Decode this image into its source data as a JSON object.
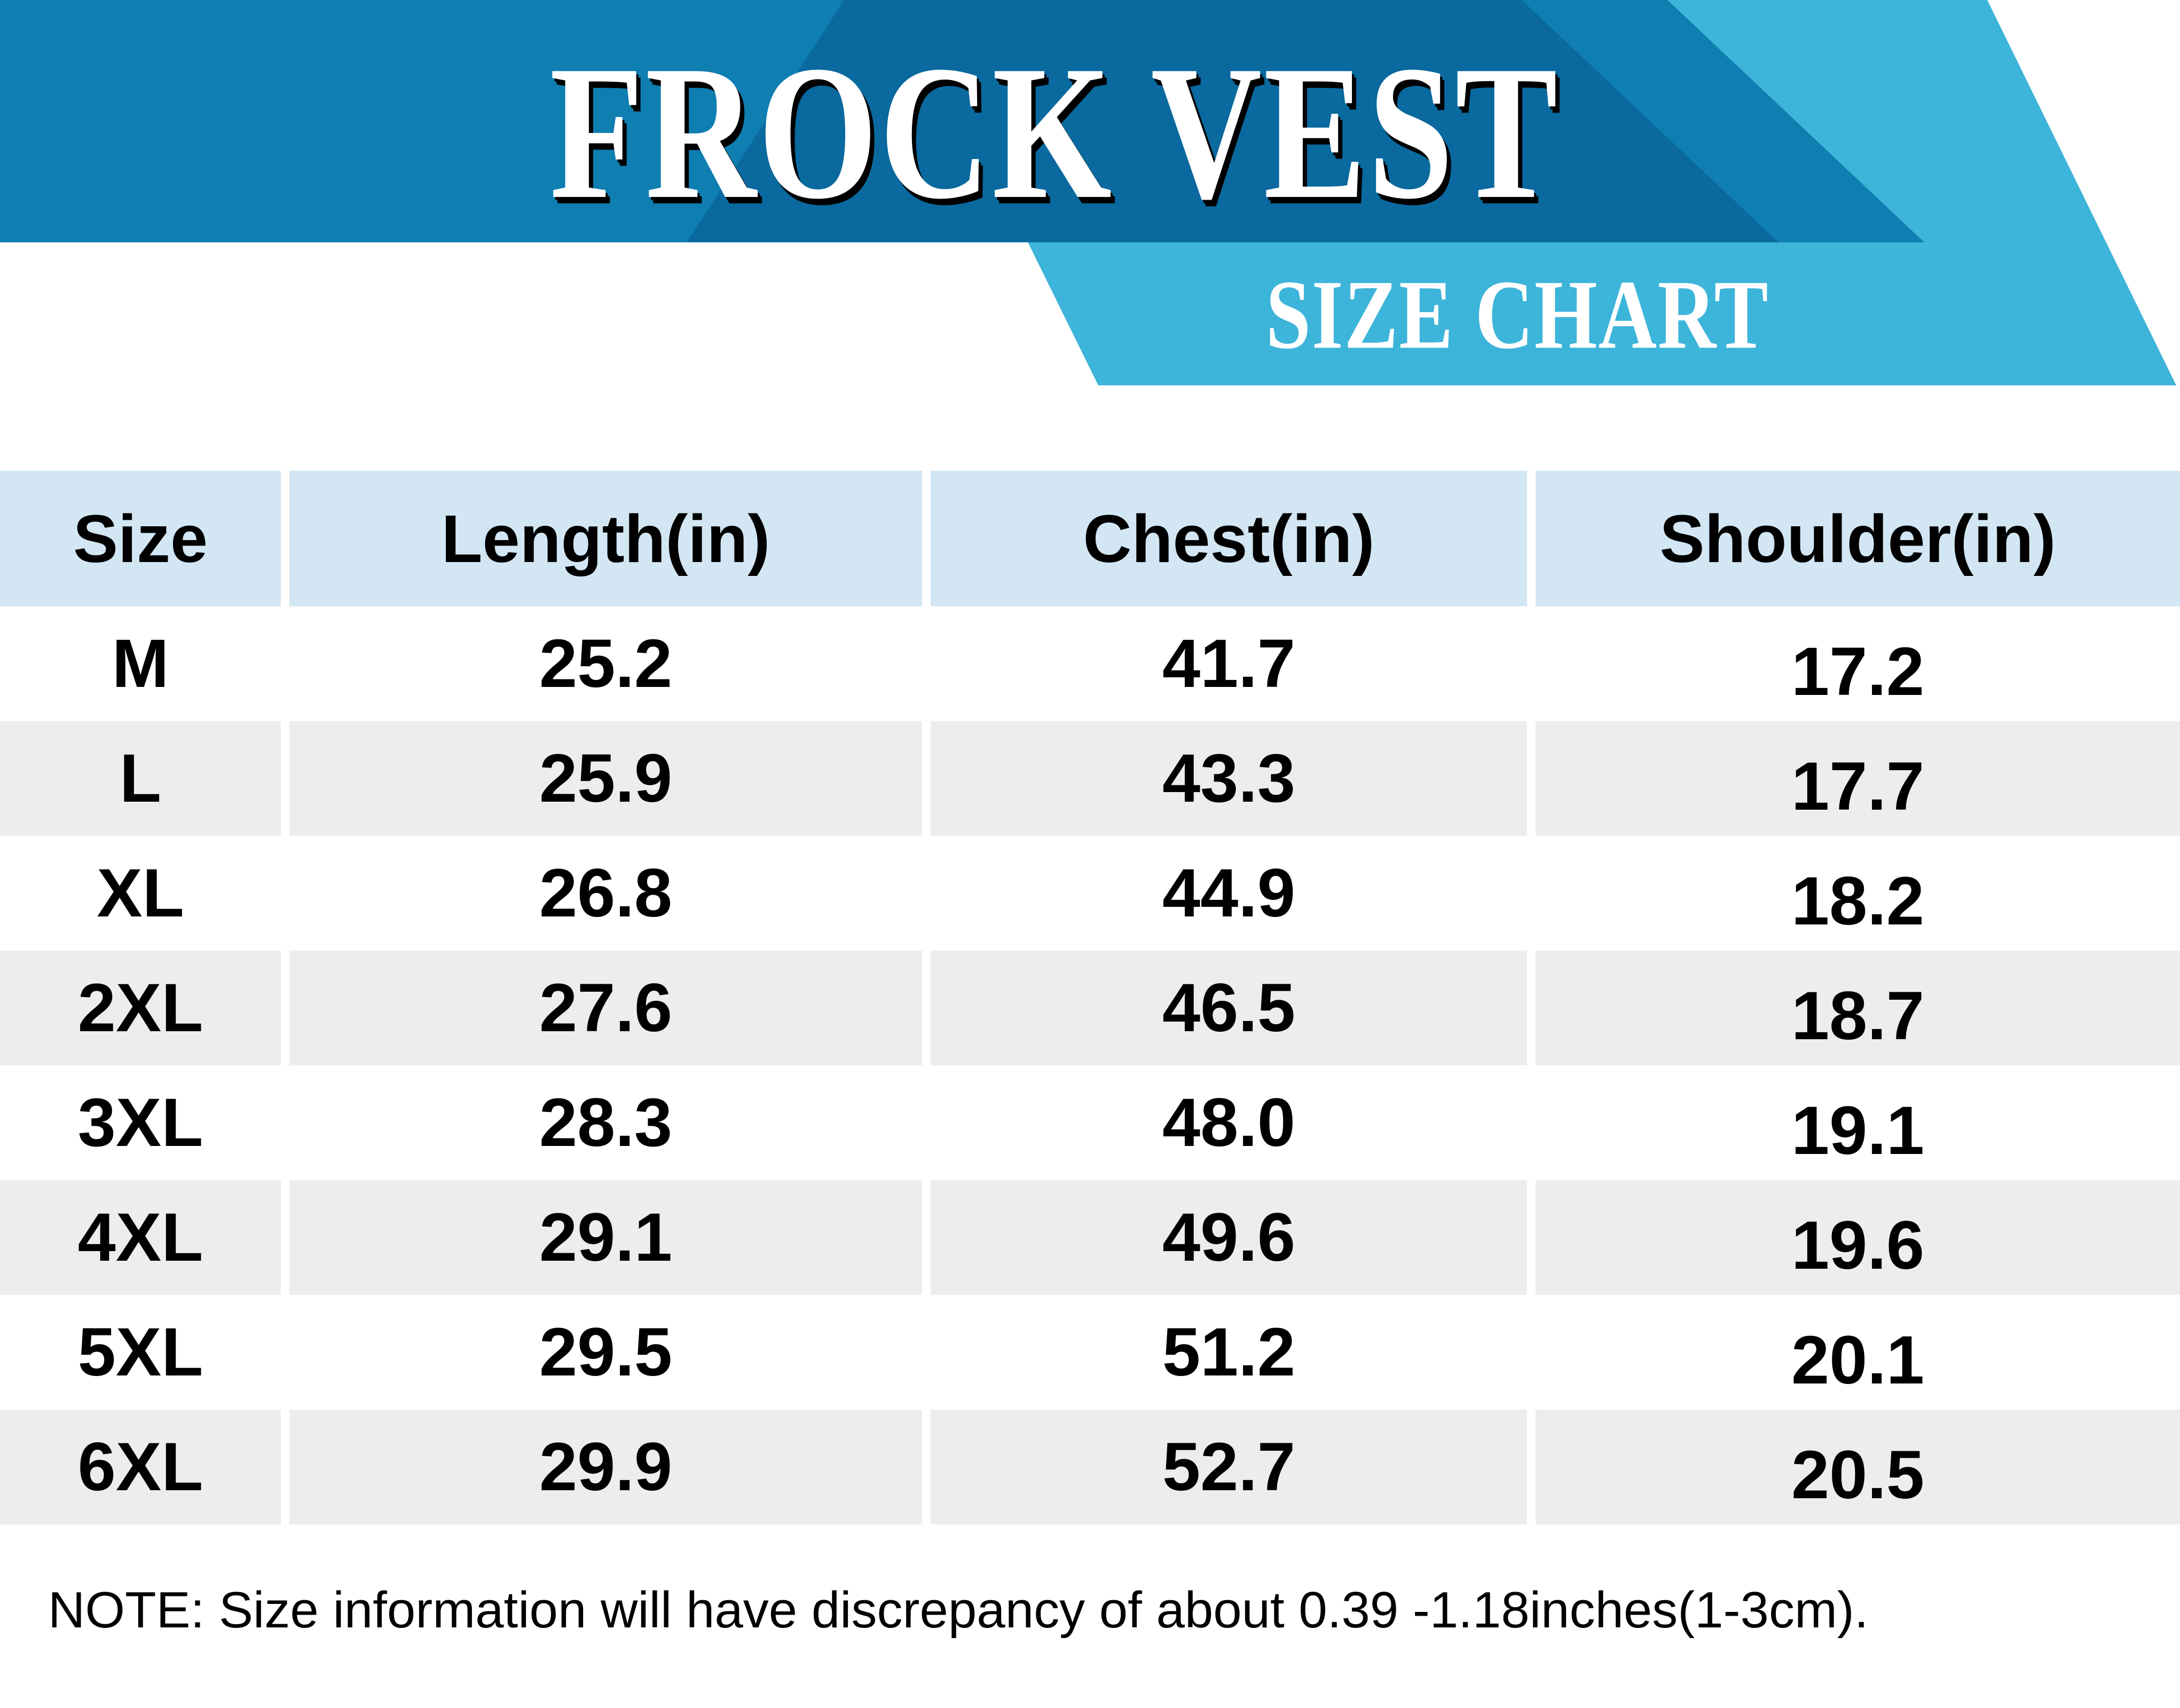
{
  "chart_data": {
    "type": "table",
    "title": "FROCK VEST",
    "subtitle": "SIZE CHART",
    "columns": [
      "Size",
      "Length(in)",
      "Chest(in)",
      "Shoulder(in)"
    ],
    "rows": [
      {
        "size": "M",
        "length": "25.2",
        "chest": "41.7",
        "shoulder": "17.2"
      },
      {
        "size": "L",
        "length": "25.9",
        "chest": "43.3",
        "shoulder": "17.7"
      },
      {
        "size": "XL",
        "length": "26.8",
        "chest": "44.9",
        "shoulder": "18.2"
      },
      {
        "size": "2XL",
        "length": "27.6",
        "chest": "46.5",
        "shoulder": "18.7"
      },
      {
        "size": "3XL",
        "length": "28.3",
        "chest": "48.0",
        "shoulder": "19.1"
      },
      {
        "size": "4XL",
        "length": "29.1",
        "chest": "49.6",
        "shoulder": "19.6"
      },
      {
        "size": "5XL",
        "length": "29.5",
        "chest": "51.2",
        "shoulder": "20.1"
      },
      {
        "size": "6XL",
        "length": "29.9",
        "chest": "52.7",
        "shoulder": "20.5"
      }
    ],
    "note": "NOTE: Size information will have discrepancy of about 0.39 -1.18inches(1-3cm).",
    "layout_hints": "header banner with diagonal blue bands; table with light-blue header row and alternating white/gray rows"
  },
  "colors": {
    "medium_blue": "#0f7eb1",
    "dark_blue": "#0a699e",
    "cyan": "#3db4d9",
    "header_cell": "#d3e6f3",
    "row_alt": "#ededf0",
    "text": "#000000",
    "page_bg": "#ffffff"
  }
}
